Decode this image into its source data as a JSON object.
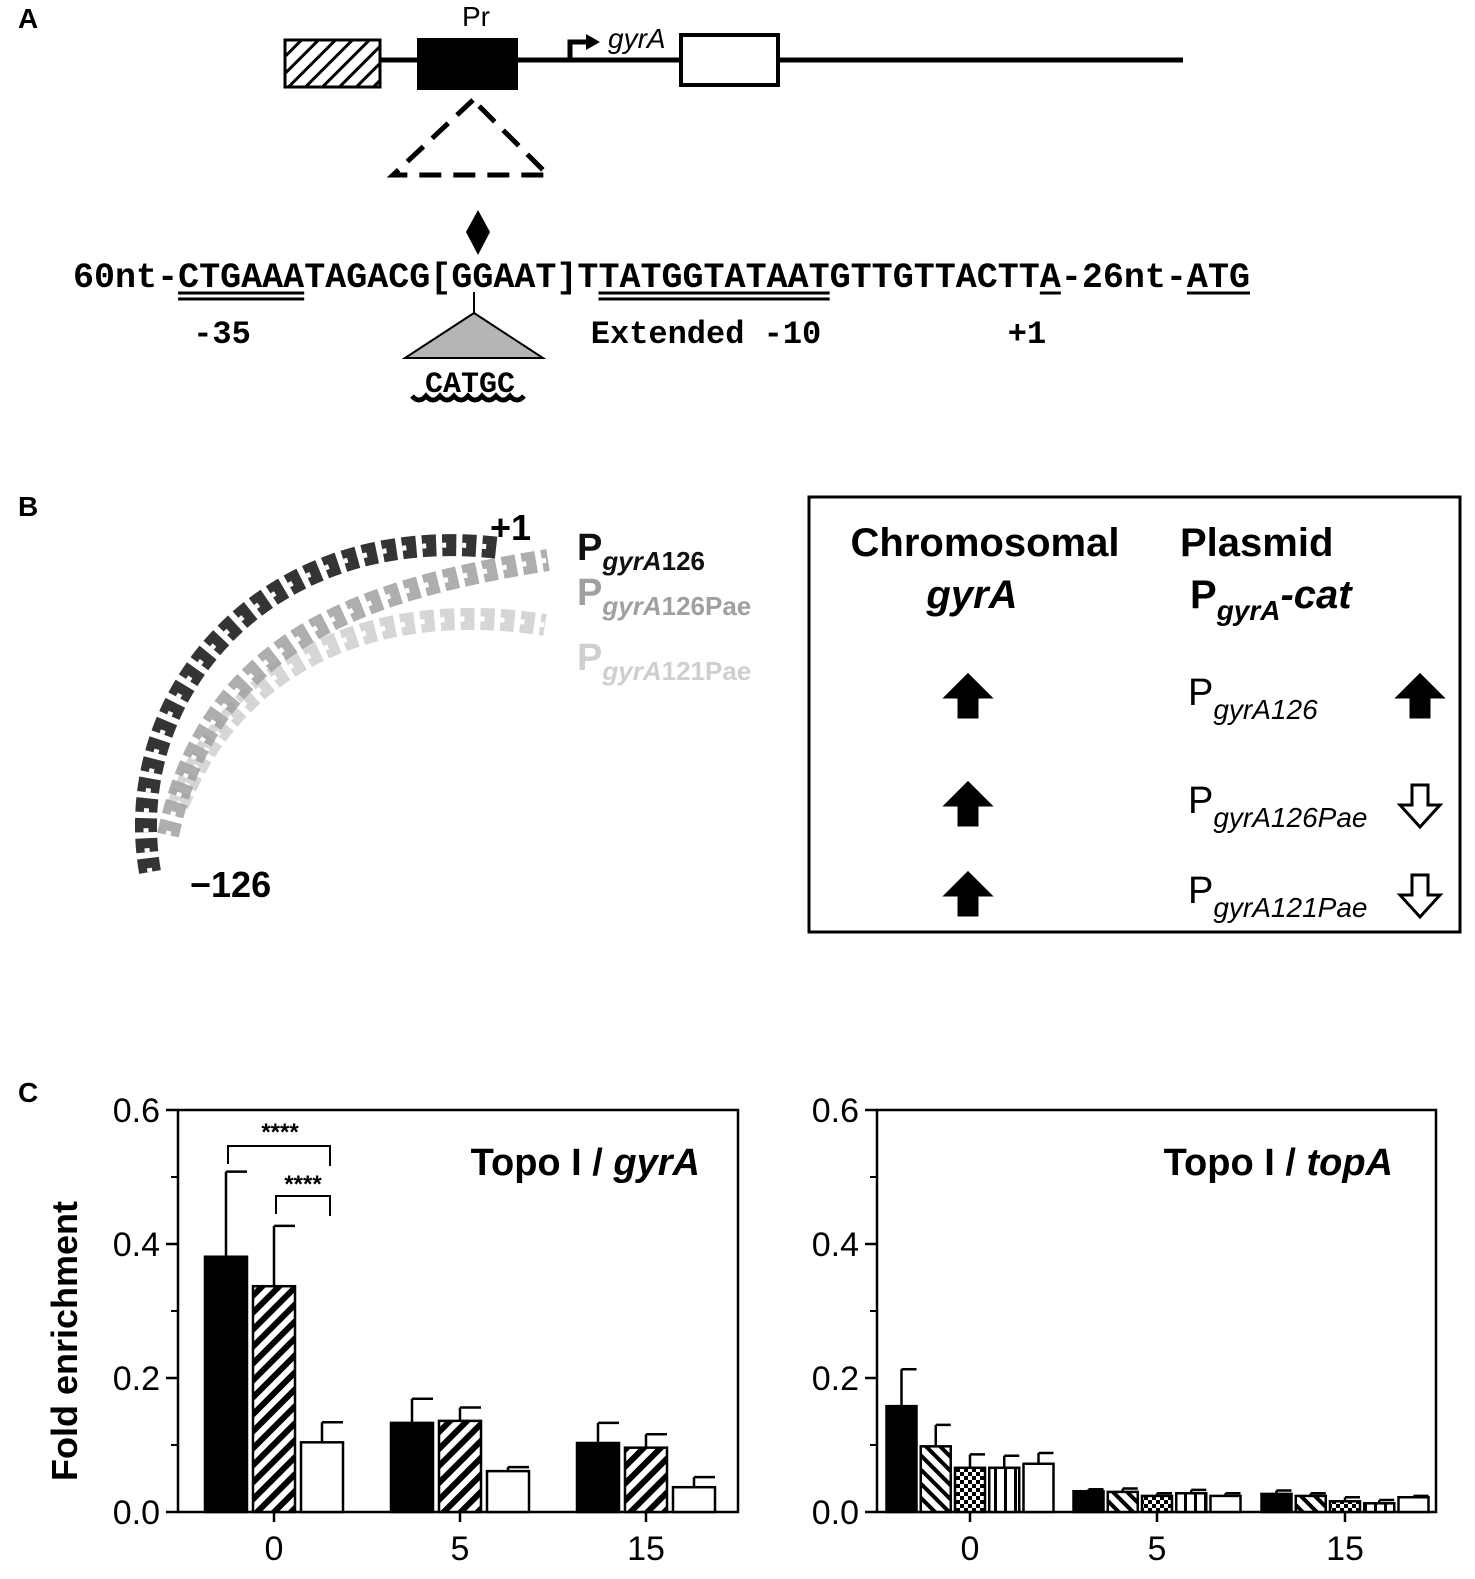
{
  "panel_labels": [
    "A",
    "B",
    "C"
  ],
  "panel_a": {
    "promoter_label": "Pr",
    "gene_label": "gyrA",
    "sequence": "60nt-CTGAAATAGACG[GGAAT]TTATGGTATAATGTTGTTACTTA-26nt-ATG",
    "labels": [
      "-35",
      "Extended -10",
      "+1"
    ],
    "insertion": "CATGC"
  },
  "panel_b": {
    "end_labels": [
      "+1",
      "−126"
    ],
    "structures": [
      {
        "p": "P",
        "sub_italic": "gyrA",
        "sub": "126",
        "color": "#111111"
      },
      {
        "p": "P",
        "sub_italic": "gyrA",
        "sub": "126Pae",
        "color": "#a0a0a0"
      },
      {
        "p": "P",
        "sub_italic": "gyrA",
        "sub": "121Pae",
        "color": "#cfcfcf"
      }
    ],
    "table": {
      "headers": [
        {
          "line1": "Chromosomal",
          "line2_italic": "gyrA"
        },
        {
          "line1": "Plasmid",
          "p": "P",
          "sub_italic": "gyrA",
          "suffix_italic": "-cat"
        }
      ],
      "rows": [
        {
          "chromosomal": "up",
          "p": "P",
          "sub": "gyrA126",
          "plasmid": "up"
        },
        {
          "chromosomal": "up",
          "p": "P",
          "sub": "gyrA126Pae",
          "plasmid": "down"
        },
        {
          "chromosomal": "up",
          "p": "P",
          "sub": "gyrA121Pae",
          "plasmid": "down"
        }
      ]
    }
  },
  "chart_data": [
    {
      "type": "bar",
      "title": "Topo I /",
      "title_italic": "gyrA",
      "y_label": "Fold enrichment",
      "categories": [
        "0",
        "5",
        "15"
      ],
      "ylim": [
        0,
        0.6
      ],
      "yticks": [
        {
          "value": 0,
          "label": "0.0"
        },
        0.2,
        0.4,
        0.6
      ],
      "yminor": [
        0.1,
        0.3,
        0.5
      ],
      "annotations": [
        "****",
        "****"
      ],
      "series": [
        {
          "color": "#000000",
          "pattern": "solid",
          "values": [
            0.381,
            0.133,
            0.103
          ],
          "errors": [
            0.127,
            0.036,
            0.03
          ]
        },
        {
          "color": "#000000",
          "pattern": "hatch-back",
          "values": [
            0.337,
            0.136,
            0.096
          ],
          "errors": [
            0.09,
            0.02,
            0.02
          ]
        },
        {
          "color": "#000000",
          "pattern": "none",
          "values": [
            0.104,
            0.061,
            0.037
          ],
          "errors": [
            0.03,
            0.006,
            0.015
          ]
        }
      ]
    },
    {
      "type": "bar",
      "title": "Topo I /",
      "title_italic": "topA",
      "categories": [
        "0",
        "5",
        "15"
      ],
      "ylim": [
        0,
        0.6
      ],
      "yticks": [
        {
          "value": 0,
          "label": "0.0"
        },
        0.2,
        0.4,
        0.6
      ],
      "yminor": [
        0.1,
        0.3,
        0.5
      ],
      "series": [
        {
          "color": "#000000",
          "pattern": "solid",
          "values": [
            0.158,
            0.031,
            0.027
          ],
          "errors": [
            0.055,
            0.003,
            0.005
          ]
        },
        {
          "color": "#000000",
          "pattern": "hatch-fwd",
          "values": [
            0.098,
            0.03,
            0.024
          ],
          "errors": [
            0.032,
            0.005,
            0.004
          ]
        },
        {
          "color": "#000000",
          "pattern": "checker",
          "values": [
            0.066,
            0.024,
            0.016
          ],
          "errors": [
            0.02,
            0.004,
            0.006
          ]
        },
        {
          "color": "#000000",
          "pattern": "vertical",
          "values": [
            0.066,
            0.028,
            0.013
          ],
          "errors": [
            0.018,
            0.005,
            0.005
          ]
        },
        {
          "color": "#000000",
          "pattern": "none",
          "values": [
            0.072,
            0.024,
            0.022
          ],
          "errors": [
            0.016,
            0.004,
            0.002
          ]
        }
      ]
    }
  ]
}
